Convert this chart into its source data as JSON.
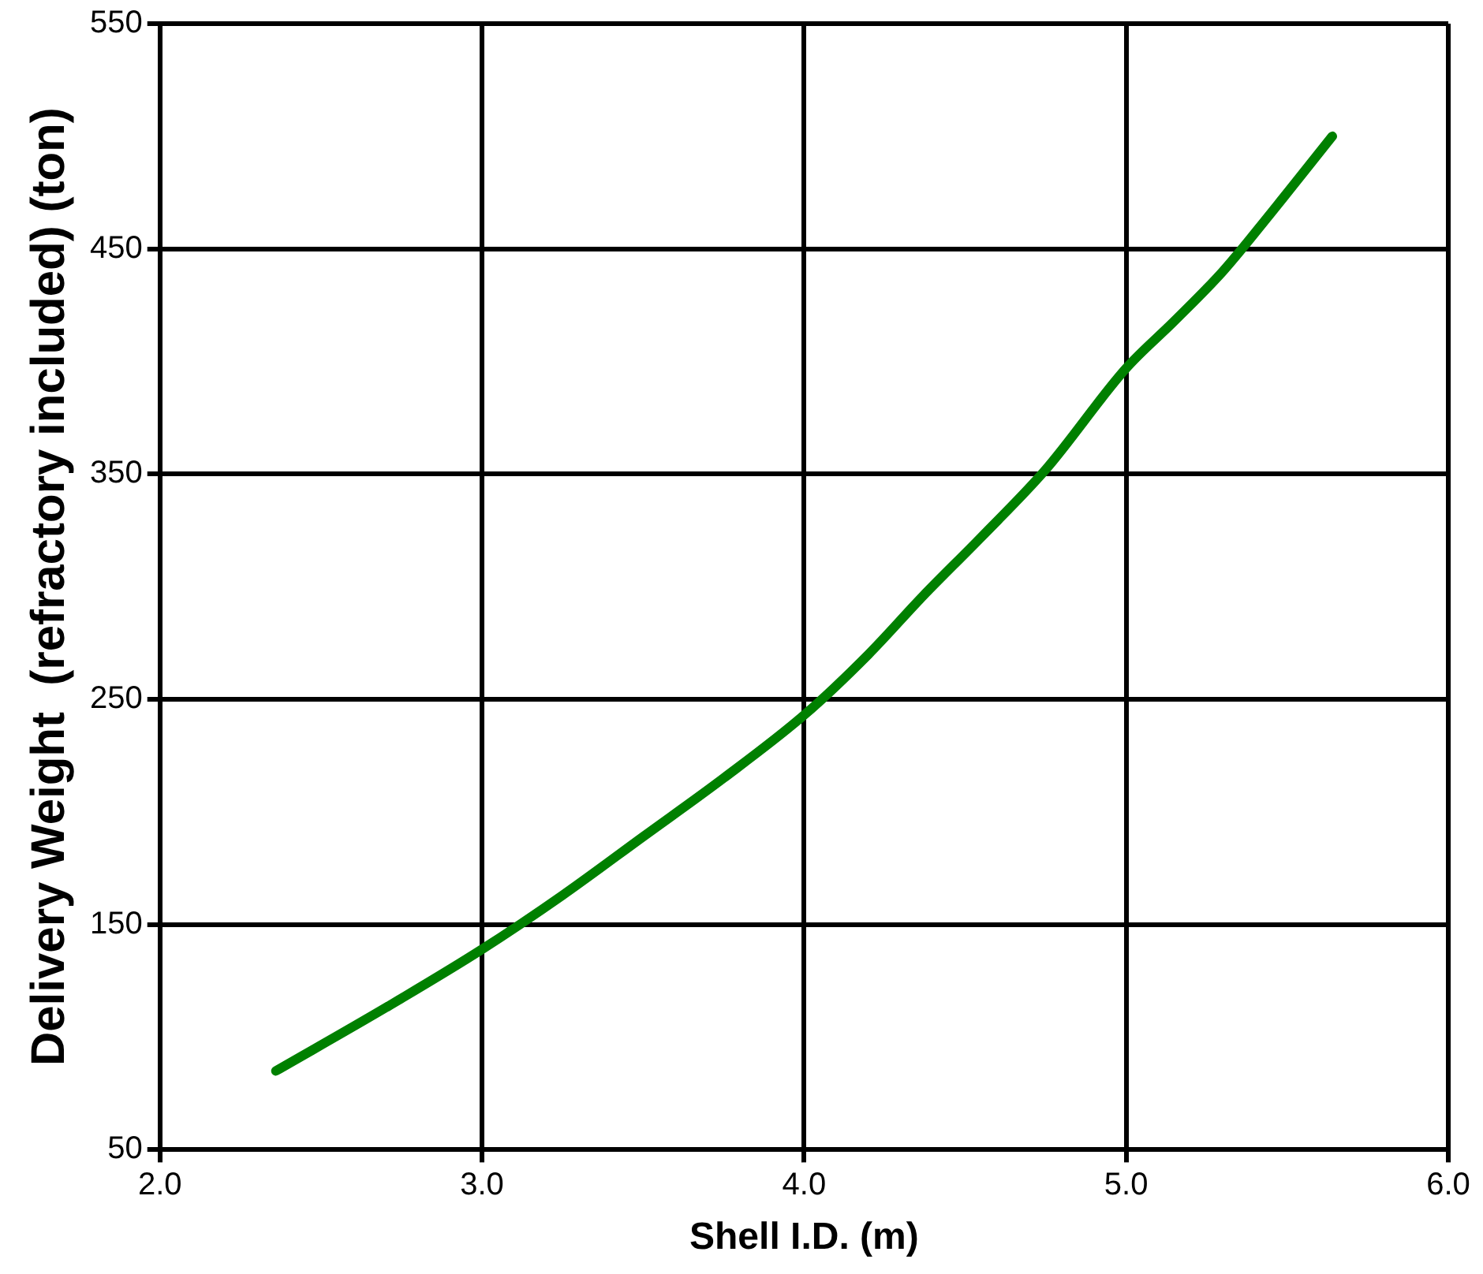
{
  "chart_data": {
    "type": "line",
    "xlabel": "Shell I.D. (m)",
    "ylabel": "Delivery Weight  (refractory included) (ton)",
    "x": [
      2.36,
      2.7,
      3.0,
      3.25,
      3.5,
      3.75,
      4.0,
      4.2,
      4.37,
      4.55,
      4.75,
      5.0,
      5.15,
      5.3,
      5.45,
      5.64
    ],
    "series": [
      {
        "color": "#008000",
        "values": [
          85,
          113,
          139,
          163,
          189,
          215,
          243,
          270,
          296,
          322,
          352,
          397,
          418,
          440,
          466,
          500
        ]
      }
    ],
    "xlim": [
      2.0,
      6.0
    ],
    "xticks": [
      {
        "value": 2,
        "label": "2.0"
      },
      {
        "value": 3,
        "label": "3.0"
      },
      {
        "value": 4,
        "label": "4.0"
      },
      {
        "value": 5,
        "label": "5.0"
      },
      {
        "value": 6,
        "label": "6.0"
      }
    ],
    "ylim": [
      50,
      550
    ],
    "yticks": [
      50,
      150,
      250,
      350,
      450,
      550
    ],
    "grid": true,
    "legend": false,
    "marker": "none",
    "line_style": "solid"
  }
}
